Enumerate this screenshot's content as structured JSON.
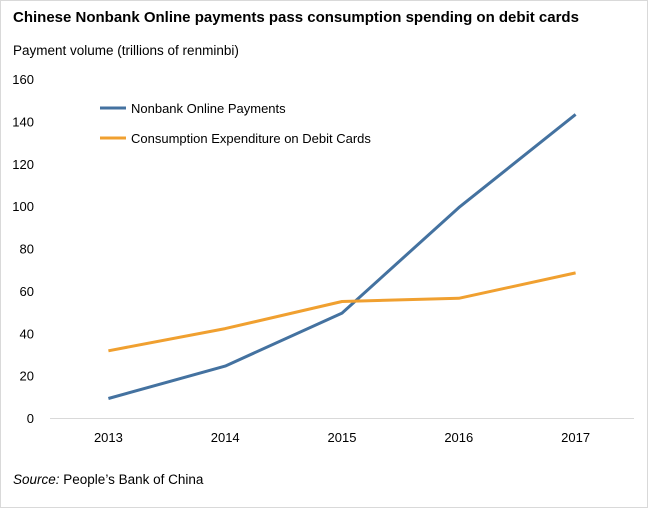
{
  "chart_data": {
    "type": "line",
    "title": "Chinese Nonbank Online payments pass consumption spending on debit cards",
    "ylabel": "Payment volume (trillions of renminbi)",
    "xlabel": "",
    "categories": [
      "2013",
      "2014",
      "2015",
      "2016",
      "2017"
    ],
    "ylim": [
      0,
      160
    ],
    "yticks": [
      "0",
      "20",
      "40",
      "60",
      "80",
      "100",
      "120",
      "140",
      "160"
    ],
    "grid": false,
    "legend_position": "top-left",
    "series": [
      {
        "name": "Nonbank Online Payments",
        "color": "#4472a0",
        "values": [
          9.2,
          24.5,
          49.5,
          99.3,
          143.3
        ]
      },
      {
        "name": "Consumption Expenditure on Debit Cards",
        "color": "#f0a030",
        "values": [
          31.7,
          42.2,
          55.0,
          56.5,
          68.5
        ]
      }
    ]
  },
  "source": {
    "prefix": "Source:",
    "text": " People’s Bank of China"
  }
}
